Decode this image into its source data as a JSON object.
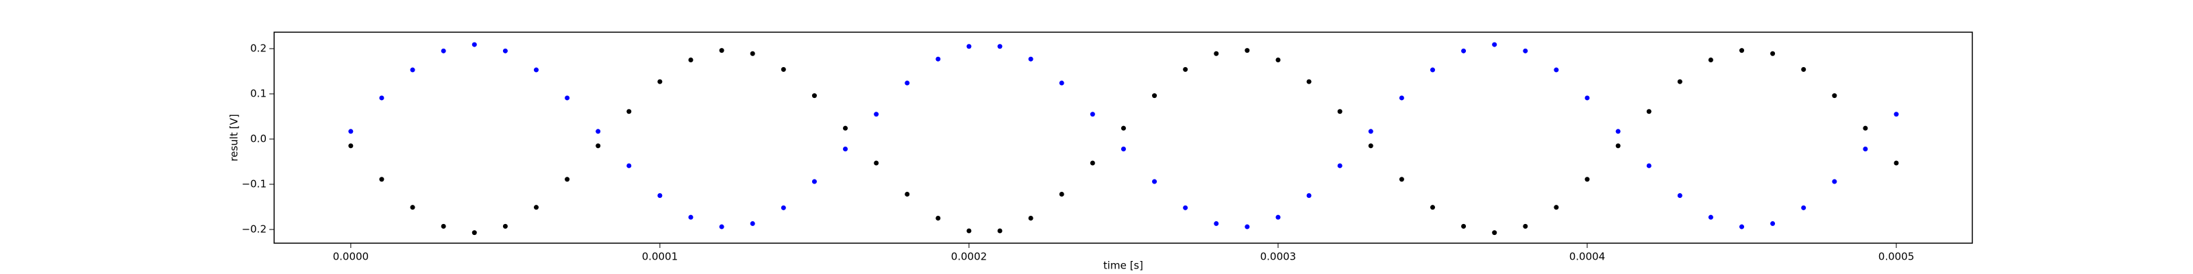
{
  "chart_data": {
    "type": "scatter",
    "x_label": "time [s]",
    "y_label": "result [V]",
    "xlim": [
      -2.48e-05,
      0.0005246
    ],
    "ylim": [
      -0.2303,
      0.2364
    ],
    "xticks": [
      {
        "value": 0,
        "label": "0.0000"
      },
      {
        "value": 0.0001,
        "label": "0.0001"
      },
      {
        "value": 0.0002,
        "label": "0.0002"
      },
      {
        "value": 0.0003,
        "label": "0.0003"
      },
      {
        "value": 0.0004,
        "label": "0.0004"
      },
      {
        "value": 0.0005,
        "label": "0.0005"
      }
    ],
    "yticks": [
      {
        "value": -0.2,
        "label": "−0.2"
      },
      {
        "value": -0.1,
        "label": "−0.1"
      },
      {
        "value": 0,
        "label": "0.0"
      },
      0.1,
      0.2
    ],
    "grid": false,
    "x": [
      0,
      1e-05,
      2e-05,
      3e-05,
      4e-05,
      5e-05,
      6e-05,
      7e-05,
      8e-05,
      9e-05,
      0.0001,
      0.00011,
      0.00012,
      0.00013,
      0.00014,
      0.00015,
      0.00016,
      0.00017,
      0.00018,
      0.00019,
      0.0002,
      0.00021,
      0.00022,
      0.00023,
      0.00024,
      0.00025,
      0.00026,
      0.00027,
      0.00028,
      0.00029,
      0.0003,
      0.00031,
      0.00032,
      0.00033,
      0.00034,
      0.00035,
      0.00036,
      0.00037,
      0.00038,
      0.00039,
      0.0004,
      0.00041,
      0.00042,
      0.00043,
      0.00044,
      0.00045,
      0.00046,
      0.00047,
      0.00048,
      0.00049,
      0.0005
    ],
    "series": [
      {
        "color": "#0000ff",
        "values": [
          0.017,
          0.091,
          0.153,
          0.195,
          0.209,
          0.195,
          0.153,
          0.091,
          0.017,
          -0.059,
          -0.125,
          -0.173,
          -0.194,
          -0.187,
          -0.152,
          -0.094,
          -0.022,
          0.055,
          0.124,
          0.177,
          0.205,
          0.205,
          0.177,
          0.124,
          0.055,
          -0.022,
          -0.094,
          -0.152,
          -0.187,
          -0.194,
          -0.173,
          -0.125,
          -0.059,
          0.017,
          0.091,
          0.153,
          0.195,
          0.209,
          0.195,
          0.153,
          0.091,
          0.017,
          -0.059,
          -0.125,
          -0.173,
          -0.194,
          -0.187,
          -0.152,
          -0.094,
          -0.022,
          0.055
        ]
      },
      {
        "color": "#000000",
        "values": [
          -0.015,
          -0.089,
          -0.151,
          -0.193,
          -0.207,
          -0.193,
          -0.151,
          -0.089,
          -0.015,
          0.061,
          0.127,
          0.175,
          0.196,
          0.189,
          0.154,
          0.096,
          0.024,
          -0.053,
          -0.122,
          -0.175,
          -0.203,
          -0.203,
          -0.175,
          -0.122,
          -0.053,
          0.024,
          0.096,
          0.154,
          0.189,
          0.196,
          0.175,
          0.127,
          0.061,
          -0.015,
          -0.089,
          -0.151,
          -0.193,
          -0.207,
          -0.193,
          -0.151,
          -0.089,
          -0.015,
          0.061,
          0.127,
          0.175,
          0.196,
          0.189,
          0.154,
          0.096,
          0.024,
          -0.053
        ]
      }
    ]
  }
}
